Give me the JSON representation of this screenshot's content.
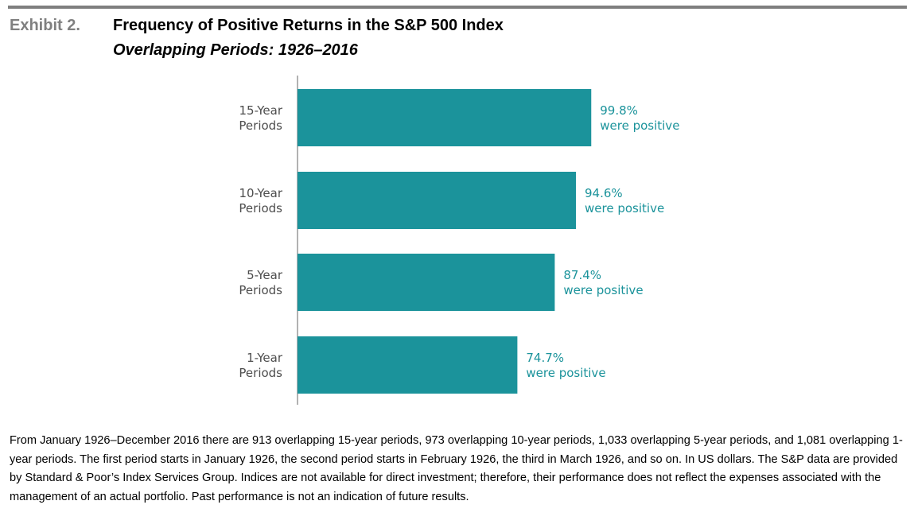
{
  "header": {
    "exhibit": "Exhibit 2.",
    "title": "Frequency of Positive Returns in the S&P 500 Index",
    "subtitle": "Overlapping Periods: 1926–2016"
  },
  "chart_data": {
    "type": "bar",
    "orientation": "horizontal",
    "categories": [
      [
        "15-Year",
        "Periods"
      ],
      [
        "10-Year",
        "Periods"
      ],
      [
        "5-Year",
        "Periods"
      ],
      [
        "1-Year",
        "Periods"
      ]
    ],
    "values": [
      99.8,
      94.6,
      87.4,
      74.7
    ],
    "value_labels": [
      [
        "99.8%",
        "were positive"
      ],
      [
        "94.6%",
        "were positive"
      ],
      [
        "87.4%",
        "were positive"
      ],
      [
        "74.7%",
        "were positive"
      ]
    ],
    "unit": "percent",
    "xlim": [
      0,
      100
    ],
    "bar_color": "#1b939b",
    "label_color": "#1b939b",
    "grid": false
  },
  "footnote": "From January 1926–December 2016 there are 913 overlapping 15-year periods, 973 overlapping 10-year periods, 1,033 overlapping 5-year periods, and 1,081 overlapping 1-year periods. The first period starts in January 1926, the second period starts in February 1926, the third in March 1926, and so on. In US dollars. The S&P data are provided by Standard & Poor’s Index Services Group. Indices are not available for direct investment; therefore, their performance does not reflect the expenses associated with the management of an actual portfolio. Past performance is not an indication of future results."
}
